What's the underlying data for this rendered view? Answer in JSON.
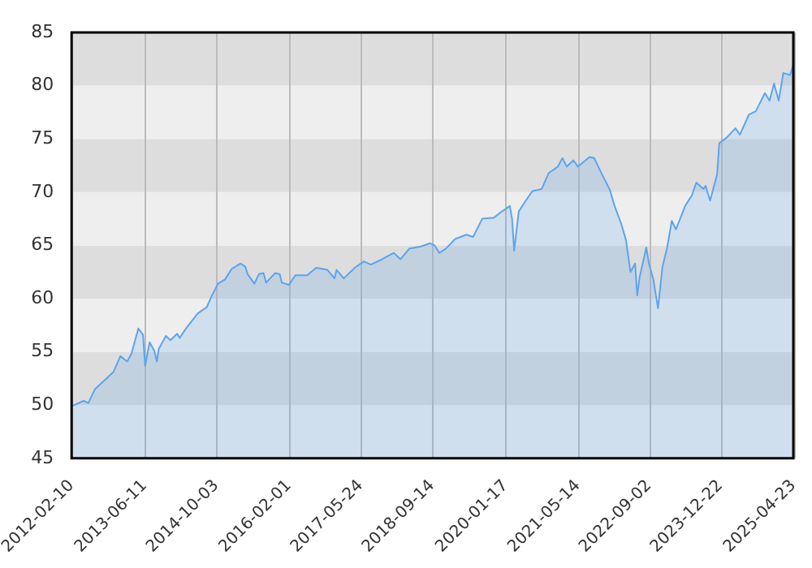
{
  "chart_data": {
    "type": "area",
    "x": [
      "2012-02-10",
      "2012-05-01",
      "2012-06-01",
      "2012-07-15",
      "2012-09-15",
      "2012-11-15",
      "2013-01-01",
      "2013-02-15",
      "2013-03-15",
      "2013-05-01",
      "2013-06-01",
      "2013-06-15",
      "2013-07-15",
      "2013-08-15",
      "2013-09-01",
      "2013-09-15",
      "2013-11-01",
      "2013-12-01",
      "2014-01-15",
      "2014-02-01",
      "2014-03-15",
      "2014-06-01",
      "2014-08-01",
      "2014-09-01",
      "2014-10-15",
      "2014-12-01",
      "2015-01-15",
      "2015-03-15",
      "2015-04-15",
      "2015-05-01",
      "2015-06-15",
      "2015-07-15",
      "2015-08-15",
      "2015-09-01",
      "2015-11-01",
      "2015-12-01",
      "2015-12-15",
      "2016-02-01",
      "2016-03-15",
      "2016-06-01",
      "2016-08-01",
      "2016-10-15",
      "2016-12-01",
      "2016-12-15",
      "2017-02-01",
      "2017-04-15",
      "2017-06-15",
      "2017-08-01",
      "2017-10-15",
      "2018-01-01",
      "2018-02-15",
      "2018-04-15",
      "2018-07-01",
      "2018-09-01",
      "2018-10-01",
      "2018-11-01",
      "2018-12-15",
      "2019-02-15",
      "2019-05-01",
      "2019-06-15",
      "2019-08-15",
      "2019-11-01",
      "2019-12-15",
      "2020-02-15",
      "2020-03-01",
      "2020-03-15",
      "2020-04-15",
      "2020-06-01",
      "2020-07-15",
      "2020-09-15",
      "2020-11-01",
      "2021-01-01",
      "2021-02-01",
      "2021-03-01",
      "2021-04-15",
      "2021-05-15",
      "2021-08-01",
      "2021-09-01",
      "2021-10-15",
      "2021-12-15",
      "2022-01-15",
      "2022-03-01",
      "2022-04-01",
      "2022-05-01",
      "2022-06-01",
      "2022-06-15",
      "2022-07-01",
      "2022-08-15",
      "2022-09-01",
      "2022-10-01",
      "2022-11-01",
      "2022-12-01",
      "2023-01-01",
      "2023-02-01",
      "2023-03-01",
      "2023-05-01",
      "2023-06-15",
      "2023-07-15",
      "2023-09-01",
      "2023-09-15",
      "2023-10-15",
      "2023-12-01",
      "2023-12-15",
      "2024-02-01",
      "2024-04-01",
      "2024-05-01",
      "2024-07-01",
      "2024-08-15",
      "2024-10-15",
      "2024-11-15",
      "2024-12-15",
      "2025-01-15",
      "2025-02-15",
      "2025-04-01",
      "2025-04-23"
    ],
    "series": [
      {
        "color": "#5ba4ef",
        "values": [
          49.9,
          50.4,
          50.2,
          51.5,
          52.3,
          53.1,
          54.6,
          54.1,
          54.8,
          57.2,
          56.6,
          53.7,
          55.9,
          55.1,
          54.1,
          55.3,
          56.5,
          56.1,
          56.7,
          56.3,
          57.2,
          58.6,
          59.2,
          60.2,
          61.4,
          61.8,
          62.8,
          63.3,
          63.0,
          62.3,
          61.4,
          62.3,
          62.4,
          61.5,
          62.4,
          62.3,
          61.5,
          61.3,
          62.2,
          62.2,
          62.9,
          62.7,
          61.9,
          62.7,
          61.9,
          62.9,
          63.5,
          63.2,
          63.7,
          64.3,
          63.7,
          64.7,
          64.9,
          65.2,
          65.0,
          64.3,
          64.7,
          65.6,
          66.0,
          65.8,
          67.5,
          67.6,
          68.1,
          68.7,
          67.5,
          64.5,
          68.2,
          69.2,
          70.1,
          70.3,
          71.8,
          72.4,
          73.2,
          72.4,
          73.0,
          72.4,
          73.3,
          73.2,
          71.9,
          70.2,
          68.7,
          67.0,
          65.5,
          62.5,
          63.3,
          60.3,
          62.0,
          64.8,
          63.3,
          61.8,
          59.1,
          63.0,
          64.8,
          67.3,
          66.5,
          68.7,
          69.7,
          70.9,
          70.3,
          70.6,
          69.2,
          71.7,
          74.6,
          75.1,
          76.0,
          75.4,
          77.3,
          77.6,
          79.3,
          78.6,
          80.2,
          78.6,
          81.2,
          81.0,
          82.0
        ]
      }
    ],
    "xlim": [
      "2012-02-10",
      "2025-04-23"
    ],
    "xticks": [
      "2012-02-10",
      "2013-06-11",
      "2014-10-03",
      "2016-02-01",
      "2017-05-24",
      "2018-09-14",
      "2020-01-17",
      "2021-05-14",
      "2022-09-02",
      "2023-12-22",
      "2025-04-23"
    ],
    "ylim": [
      45,
      85
    ],
    "yticks": [
      45,
      50,
      55,
      60,
      65,
      70,
      75,
      80,
      85
    ],
    "grid": true,
    "legend": false,
    "marker": "none"
  }
}
